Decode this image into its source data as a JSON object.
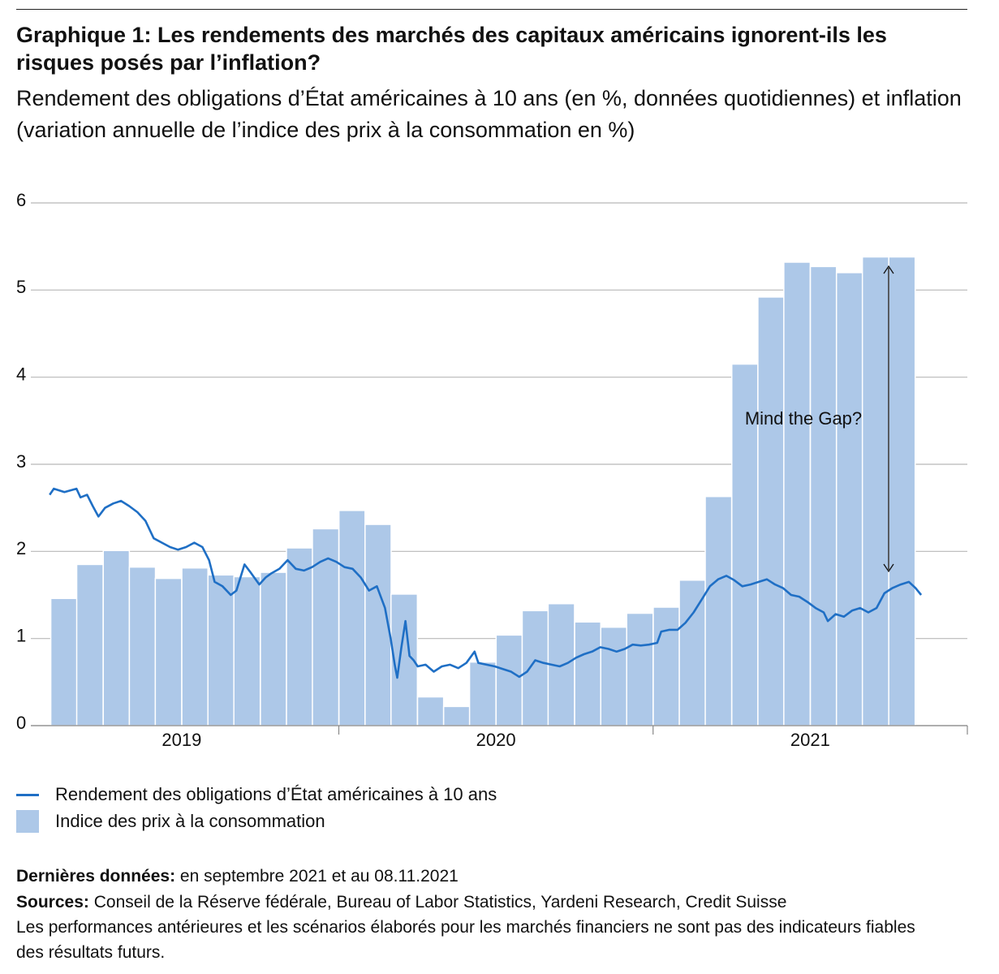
{
  "chart_data": {
    "type": "combo",
    "title": "Graphique 1: Les rendements des marchés des capitaux américains ignorent-ils les risques posés par l’inflation?",
    "subtitle": "Rendement des obligations d’État américaines à 10 ans (en %, données quotidiennes) et inflation (variation annuelle de l’indice des prix à la consommation en %)",
    "xlim": [
      2019.02,
      2022
    ],
    "xticks": [
      {
        "value": 2019.5,
        "label": "2019"
      },
      {
        "value": 2020.5,
        "label": "2020"
      },
      {
        "value": 2021.5,
        "label": "2021"
      }
    ],
    "ylim": [
      0,
      6
    ],
    "yticks": [
      0,
      1,
      2,
      3,
      4,
      5,
      6
    ],
    "grid": true,
    "annotations": [
      {
        "text": "Mind the Gap?"
      }
    ],
    "series": [
      {
        "name": "Rendement des obligations d’État américaines à 10 ans",
        "type": "line",
        "color": "#1f6fc5",
        "x": [
          2019.08,
          2019.093,
          2019.127,
          2019.165,
          2019.178,
          2019.199,
          2019.217,
          2019.235,
          2019.256,
          2019.282,
          2019.307,
          2019.333,
          2019.359,
          2019.385,
          2019.411,
          2019.437,
          2019.463,
          2019.488,
          2019.514,
          2019.54,
          2019.566,
          2019.587,
          2019.605,
          2019.63,
          2019.656,
          2019.674,
          2019.7,
          2019.721,
          2019.747,
          2019.767,
          2019.786,
          2019.811,
          2019.837,
          2019.863,
          2019.889,
          2019.915,
          2019.941,
          2019.966,
          2019.992,
          2020.018,
          2020.044,
          2020.07,
          2020.096,
          2020.121,
          2020.147,
          2020.165,
          2020.178,
          2020.186,
          2020.199,
          2020.212,
          2020.225,
          2020.238,
          2020.251,
          2020.276,
          2020.302,
          2020.328,
          2020.354,
          2020.38,
          2020.406,
          2020.432,
          2020.444,
          2020.47,
          2020.496,
          2020.522,
          2020.548,
          2020.574,
          2020.599,
          2020.625,
          2020.651,
          2020.677,
          2020.703,
          2020.729,
          2020.755,
          2020.78,
          2020.806,
          2020.832,
          2020.858,
          2020.884,
          2020.91,
          2020.935,
          2020.961,
          2020.987,
          2021.013,
          2021.026,
          2021.052,
          2021.078,
          2021.103,
          2021.129,
          2021.155,
          2021.181,
          2021.207,
          2021.233,
          2021.258,
          2021.284,
          2021.31,
          2021.336,
          2021.362,
          2021.388,
          2021.413,
          2021.439,
          2021.465,
          2021.491,
          2021.517,
          2021.543,
          2021.556,
          2021.581,
          2021.607,
          2021.633,
          2021.659,
          2021.685,
          2021.711,
          2021.736,
          2021.762,
          2021.788,
          2021.814,
          2021.835,
          2021.853
        ],
        "values": [
          2.65,
          2.72,
          2.68,
          2.72,
          2.62,
          2.65,
          2.52,
          2.4,
          2.5,
          2.55,
          2.58,
          2.52,
          2.45,
          2.35,
          2.15,
          2.1,
          2.05,
          2.02,
          2.05,
          2.1,
          2.05,
          1.9,
          1.65,
          1.6,
          1.5,
          1.55,
          1.85,
          1.75,
          1.62,
          1.7,
          1.75,
          1.8,
          1.9,
          1.8,
          1.78,
          1.82,
          1.88,
          1.92,
          1.88,
          1.82,
          1.8,
          1.7,
          1.55,
          1.6,
          1.35,
          1.0,
          0.7,
          0.55,
          0.9,
          1.2,
          0.8,
          0.75,
          0.68,
          0.7,
          0.62,
          0.68,
          0.7,
          0.66,
          0.72,
          0.85,
          0.72,
          0.7,
          0.68,
          0.65,
          0.62,
          0.56,
          0.62,
          0.75,
          0.72,
          0.7,
          0.68,
          0.72,
          0.78,
          0.82,
          0.85,
          0.9,
          0.88,
          0.85,
          0.88,
          0.93,
          0.92,
          0.93,
          0.95,
          1.08,
          1.1,
          1.1,
          1.18,
          1.3,
          1.45,
          1.6,
          1.68,
          1.72,
          1.67,
          1.6,
          1.62,
          1.65,
          1.68,
          1.62,
          1.58,
          1.5,
          1.48,
          1.42,
          1.35,
          1.3,
          1.2,
          1.28,
          1.25,
          1.32,
          1.35,
          1.3,
          1.35,
          1.52,
          1.58,
          1.62,
          1.65,
          1.58,
          1.5
        ]
      },
      {
        "name": "Indice des prix à la consommation",
        "type": "bar",
        "color": "#adc8e8",
        "x": [
          2019.125,
          2019.208,
          2019.292,
          2019.375,
          2019.458,
          2019.542,
          2019.625,
          2019.708,
          2019.792,
          2019.875,
          2019.958,
          2020.042,
          2020.125,
          2020.208,
          2020.292,
          2020.375,
          2020.458,
          2020.542,
          2020.625,
          2020.708,
          2020.792,
          2020.875,
          2020.958,
          2021.042,
          2021.125,
          2021.208,
          2021.292,
          2021.375,
          2021.458,
          2021.542,
          2021.625,
          2021.708,
          2021.792
        ],
        "values": [
          1.46,
          1.85,
          2.01,
          1.82,
          1.69,
          1.81,
          1.73,
          1.71,
          1.76,
          2.04,
          2.26,
          2.47,
          2.31,
          1.51,
          0.33,
          0.22,
          0.73,
          1.04,
          1.32,
          1.4,
          1.19,
          1.13,
          1.29,
          1.36,
          1.67,
          2.63,
          4.15,
          4.92,
          5.32,
          5.27,
          5.2,
          5.38,
          5.38
        ]
      }
    ]
  },
  "notes": {
    "latest_label": "Dernières données:",
    "latest": "en septembre 2021 et au 08.11.2021",
    "sources_label": "Sources:",
    "sources": "Conseil de la Réserve fédérale, Bureau of Labor Statistics, Yardeni Research, Credit Suisse",
    "disclaimer": "Les performances antérieures et les scénarios élaborés pour les marchés financiers ne sont pas des indicateurs fiables des résultats futurs."
  }
}
